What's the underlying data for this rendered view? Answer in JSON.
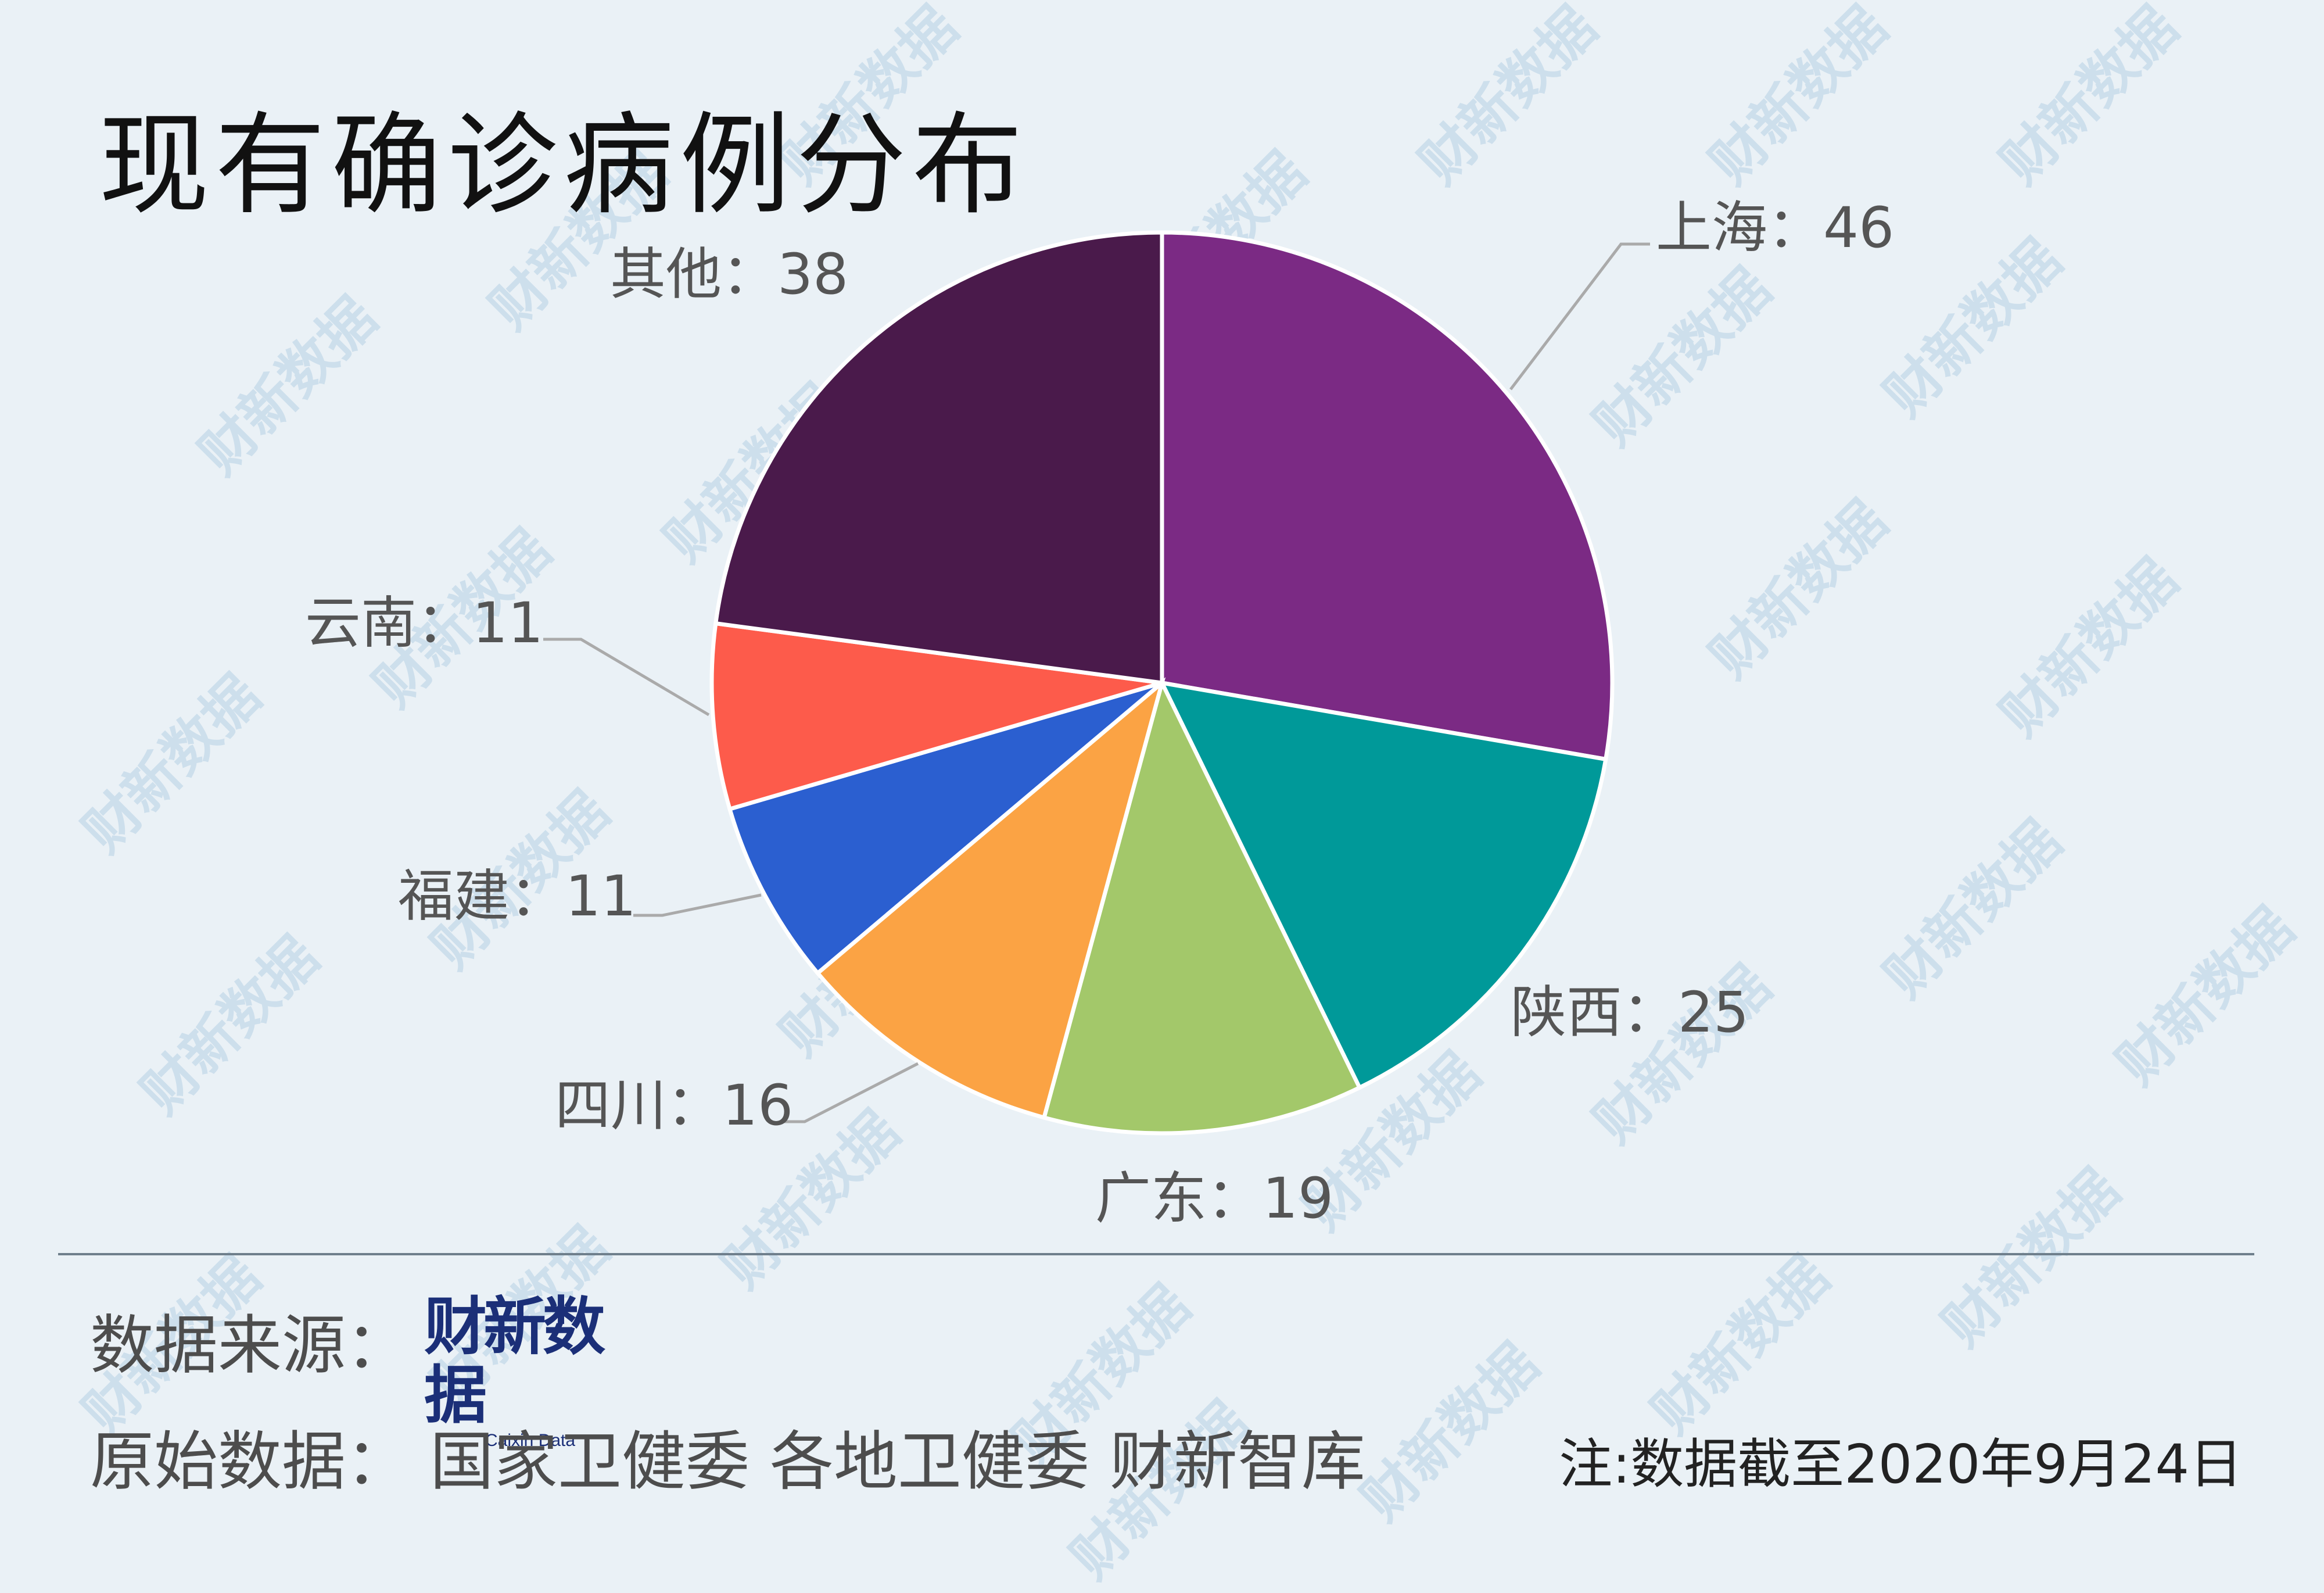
{
  "title": "现有确诊病例分布",
  "watermark_text": "财新数据",
  "chart_data": {
    "type": "pie",
    "title": "现有确诊病例分布",
    "start_angle_deg": 0,
    "direction": "clockwise",
    "slices": [
      {
        "label": "上海",
        "value": 46,
        "color": "#7b2a84",
        "display": "上海：46"
      },
      {
        "label": "陕西",
        "value": 25,
        "color": "#009999",
        "display": "陕西：25"
      },
      {
        "label": "广东",
        "value": 19,
        "color": "#a3c86a",
        "display": "广东：19"
      },
      {
        "label": "四川",
        "value": 16,
        "color": "#fba344",
        "display": "四川：16"
      },
      {
        "label": "福建",
        "value": 11,
        "color": "#2b5fd0",
        "display": "福建：11"
      },
      {
        "label": "云南",
        "value": 11,
        "color": "#fd5b4b",
        "display": "云南：11"
      },
      {
        "label": "其他",
        "value": 38,
        "color": "#4a1a4b",
        "display": "其他：38"
      }
    ],
    "slice_border_color": "#ffffff",
    "leader_line_color": "#aaaaaa"
  },
  "footer": {
    "source_label": "数据来源：",
    "source_logo": "财新数据",
    "source_logo_en": "Caixin Data",
    "raw_data_label": "原始数据：  国家卫健委  各地卫健委  财新智库",
    "note": "注:数据截至2020年9月24日"
  }
}
